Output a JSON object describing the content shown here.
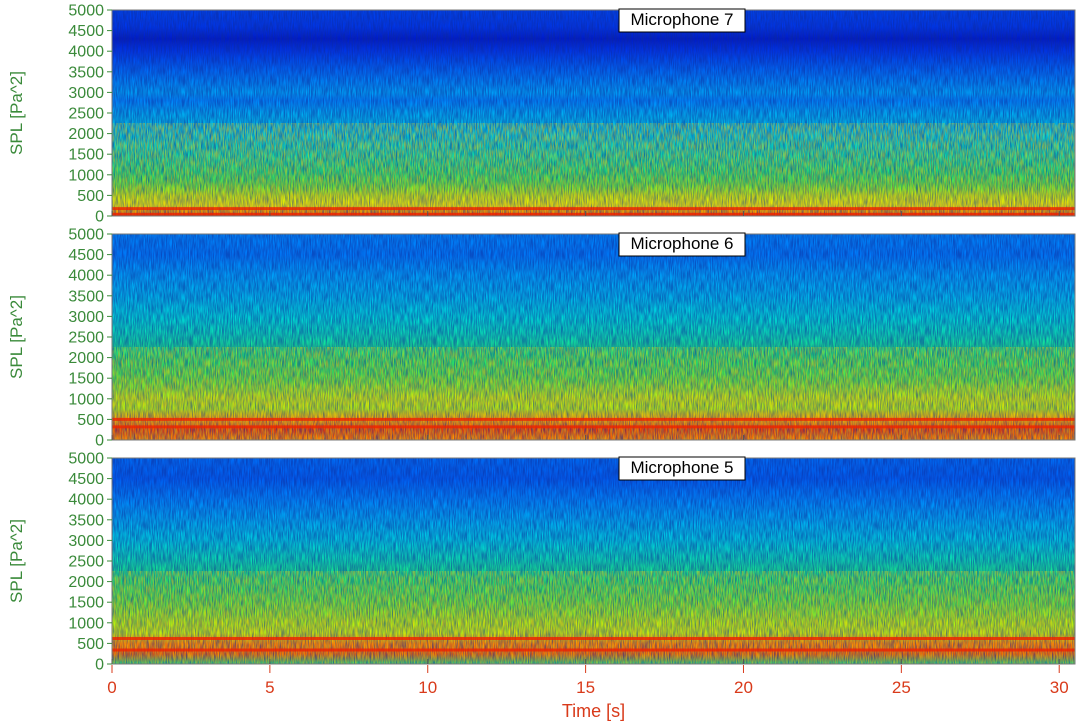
{
  "chart_data": {
    "type": "heatmap",
    "shared_x": {
      "label": "Time [s]",
      "range": [
        0,
        30.5
      ],
      "ticks": [
        0,
        5,
        10,
        15,
        20,
        25,
        30
      ]
    },
    "colors": {
      "y_text": "#3a8a3a",
      "x_text": "#d93a1a",
      "title_box_border": "#000000",
      "title_box_fill": "#ffffff"
    },
    "panels": [
      {
        "title": "Microphone 7",
        "ylabel": "SPL [Pa^2]",
        "ylim": [
          0,
          5000
        ],
        "yticks": [
          0,
          500,
          1000,
          1500,
          2000,
          2500,
          3000,
          3500,
          4000,
          4500,
          5000
        ],
        "frequency_bands": [
          0,
          250,
          500,
          750,
          1000,
          1500,
          2000,
          2500,
          2800,
          3000,
          3500,
          4000,
          4300,
          4600,
          5000
        ],
        "band_levels": [
          0.95,
          0.72,
          0.66,
          0.56,
          0.5,
          0.44,
          0.38,
          0.32,
          0.26,
          0.3,
          0.22,
          0.14,
          0.08,
          0.14,
          0.16
        ],
        "tonal_lines": [
          40,
          180
        ]
      },
      {
        "title": "Microphone 6",
        "ylabel": "SPL [Pa^2]",
        "ylim": [
          0,
          5000
        ],
        "yticks": [
          0,
          500,
          1000,
          1500,
          2000,
          2500,
          3000,
          3500,
          4000,
          4500,
          5000
        ],
        "frequency_bands": [
          0,
          250,
          500,
          750,
          1000,
          1500,
          2000,
          2500,
          3000,
          3500,
          4000,
          4500,
          5000
        ],
        "band_levels": [
          0.86,
          0.95,
          0.82,
          0.64,
          0.66,
          0.55,
          0.5,
          0.44,
          0.4,
          0.34,
          0.3,
          0.24,
          0.26
        ],
        "tonal_lines": [
          320,
          500
        ]
      },
      {
        "title": "Microphone 5",
        "ylabel": "SPL [Pa^2]",
        "ylim": [
          0,
          5000
        ],
        "yticks": [
          0,
          500,
          1000,
          1500,
          2000,
          2500,
          3000,
          3500,
          4000,
          4500,
          5000
        ],
        "frequency_bands": [
          0,
          250,
          500,
          750,
          1000,
          1500,
          2000,
          2500,
          3000,
          3500,
          4000,
          4500,
          5000
        ],
        "band_levels": [
          0.48,
          0.9,
          0.86,
          0.66,
          0.64,
          0.56,
          0.5,
          0.44,
          0.38,
          0.32,
          0.26,
          0.2,
          0.22
        ],
        "tonal_lines": [
          340,
          620
        ]
      }
    ]
  }
}
